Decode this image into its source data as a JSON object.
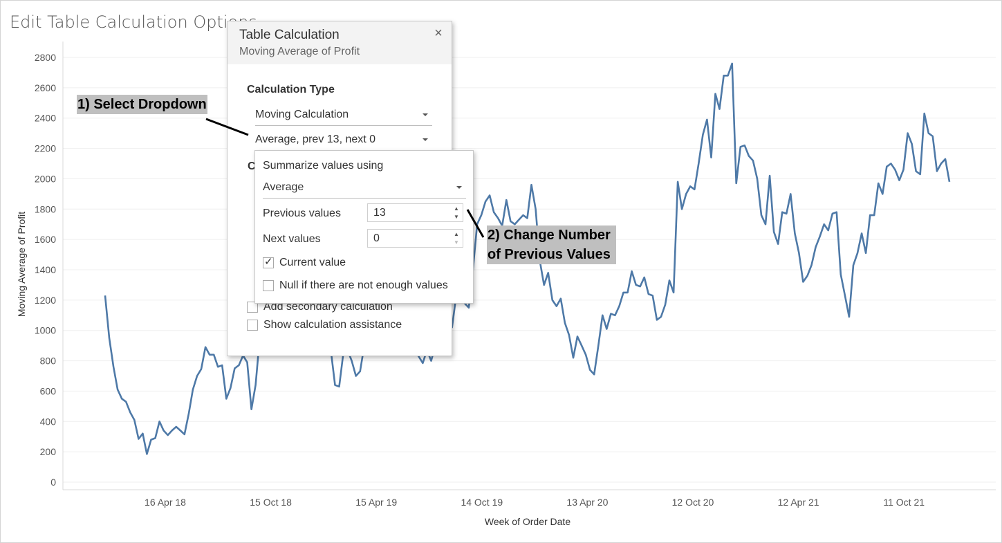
{
  "page": {
    "title": "Edit Table Calculation Options"
  },
  "dialog": {
    "title": "Table Calculation",
    "subtitle": "Moving Average of Profit",
    "close_symbol": "×",
    "calculation_type_label": "Calculation Type",
    "calculation_type_value": "Moving Calculation",
    "options_value": "Average, prev 13, next 0",
    "compute_label_stub": "C",
    "add_secondary_label": "Add secondary calculation",
    "show_assistance_label": "Show calculation assistance"
  },
  "popup": {
    "summarize_label": "Summarize values using",
    "aggregate_value": "Average",
    "previous_label": "Previous values",
    "previous_value": "13",
    "next_label": "Next values",
    "next_value": "0",
    "current_value_label": "Current value",
    "current_value_checked": true,
    "null_label": "Null if there are not enough values",
    "null_checked": false
  },
  "annotations": {
    "step1": "1) Select Dropdown",
    "step2_line1": "2) Change Number",
    "step2_line2": "of Previous Values"
  },
  "colors": {
    "line": "#4e79a7",
    "gridline": "#efefef",
    "callout_bg": "#bfbfbf"
  },
  "chart_data": {
    "type": "line",
    "xlabel": "Week of Order Date",
    "ylabel": "Moving Average of Profit",
    "ylim": [
      0,
      2800
    ],
    "yticks": [
      0,
      200,
      400,
      600,
      800,
      1000,
      1200,
      1400,
      1600,
      1800,
      2000,
      2200,
      2400,
      2600,
      2800
    ],
    "xtick_labels": [
      "16 Apr 18",
      "15 Oct 18",
      "15 Apr 19",
      "14 Oct 19",
      "13 Apr 20",
      "12 Oct 20",
      "12 Apr 21",
      "11 Oct 21"
    ],
    "grid": "horizontal",
    "series": [
      {
        "values": [
          1230,
          950,
          760,
          610,
          550,
          530,
          460,
          410,
          285,
          320,
          185,
          280,
          290,
          400,
          340,
          310,
          340,
          365,
          340,
          315,
          450,
          610,
          700,
          745,
          890,
          840,
          840,
          760,
          770,
          550,
          620,
          750,
          770,
          835,
          790,
          480,
          640,
          950,
          1100,
          1200,
          1300,
          1350,
          1400,
          1380,
          1300,
          1250,
          1200,
          1150,
          1100,
          1050,
          1000,
          950,
          900,
          880,
          870,
          640,
          630,
          850,
          870,
          800,
          700,
          730,
          900,
          1050,
          1150,
          1200,
          1250,
          1200,
          1150,
          1100,
          1050,
          1000,
          950,
          900,
          870,
          830,
          785,
          870,
          800,
          900,
          1030,
          950,
          1110,
          1020,
          1230,
          1240,
          1180,
          1150,
          1400,
          1700,
          1760,
          1850,
          1890,
          1780,
          1740,
          1690,
          1860,
          1720,
          1700,
          1730,
          1760,
          1740,
          1960,
          1800,
          1460,
          1300,
          1380,
          1200,
          1160,
          1210,
          1050,
          970,
          820,
          960,
          900,
          840,
          740,
          710,
          900,
          1100,
          1010,
          1110,
          1100,
          1160,
          1250,
          1250,
          1390,
          1300,
          1290,
          1350,
          1240,
          1230,
          1070,
          1090,
          1170,
          1330,
          1250,
          1980,
          1800,
          1900,
          1950,
          1930,
          2100,
          2290,
          2390,
          2140,
          2560,
          2460,
          2680,
          2680,
          2760,
          1970,
          2210,
          2220,
          2150,
          2120,
          2000,
          1760,
          1700,
          2020,
          1650,
          1570,
          1780,
          1770,
          1900,
          1640,
          1510,
          1320,
          1360,
          1430,
          1550,
          1620,
          1700,
          1660,
          1770,
          1780,
          1370,
          1230,
          1090,
          1430,
          1510,
          1640,
          1510,
          1760,
          1760,
          1970,
          1900,
          2080,
          2100,
          2060,
          1990,
          2060,
          2300,
          2230,
          2050,
          2030,
          2430,
          2300,
          2280,
          2050,
          2100,
          2130,
          1980
        ]
      }
    ]
  }
}
